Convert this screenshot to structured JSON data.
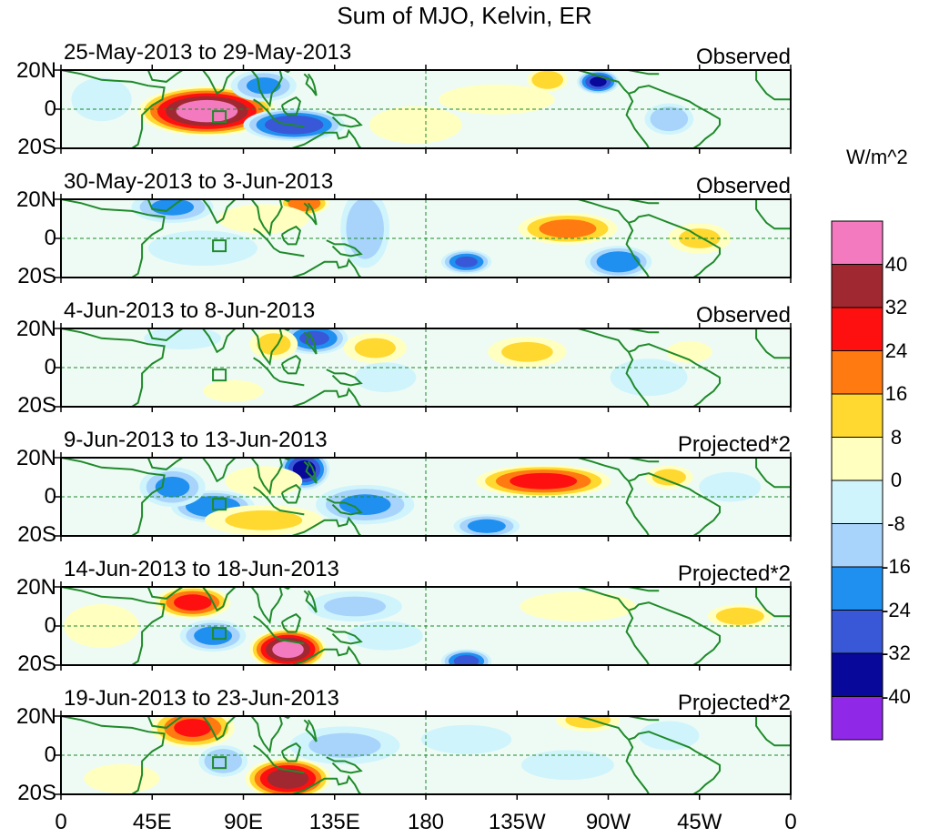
{
  "chart_data": {
    "type": "heatmap",
    "title": "Sum of MJO, Kelvin, ER",
    "colorbar": {
      "unit": "W/m^2",
      "levels": [
        "40",
        "32",
        "24",
        "16",
        "8",
        "0",
        "-8",
        "-16",
        "-24",
        "-32",
        "-40"
      ],
      "colors": [
        "#f47ac0",
        "#a02830",
        "#ff1010",
        "#ff7a10",
        "#ffd830",
        "#ffffc0",
        "#d0f4fc",
        "#a8d4fc",
        "#2090f0",
        "#3858d8",
        "#08089a",
        "#9028e8"
      ]
    },
    "x_axis": {
      "ticks": [
        "0",
        "45E",
        "90E",
        "135E",
        "180",
        "135W",
        "90W",
        "45W",
        "0"
      ],
      "range": [
        0,
        360
      ]
    },
    "y_axis": {
      "ticks": [
        "20N",
        "0",
        "20S"
      ],
      "range": [
        -20,
        20
      ]
    },
    "panels": [
      {
        "date": "25-May-2013 to 29-May-2013",
        "label": "Observed",
        "anomalies": [
          {
            "lon": 72,
            "lat": -1,
            "sx": 16,
            "sy": 6,
            "v": 48
          },
          {
            "lon": 115,
            "lat": -8,
            "sx": 12,
            "sy": 4,
            "v": -34
          },
          {
            "lon": 100,
            "lat": 12,
            "sx": 8,
            "sy": 4,
            "v": -20
          },
          {
            "lon": 175,
            "lat": -8,
            "sx": 12,
            "sy": 5,
            "v": 10
          },
          {
            "lon": 215,
            "lat": 5,
            "sx": 15,
            "sy": 4,
            "v": 10
          },
          {
            "lon": 265,
            "lat": 14,
            "sx": 5,
            "sy": 3,
            "v": -36
          },
          {
            "lon": 240,
            "lat": 15,
            "sx": 5,
            "sy": 3,
            "v": 18
          },
          {
            "lon": 300,
            "lat": -5,
            "sx": 6,
            "sy": 4,
            "v": -18
          },
          {
            "lon": 20,
            "lat": 5,
            "sx": 8,
            "sy": 6,
            "v": -8
          }
        ]
      },
      {
        "date": "30-May-2013 to 3-Jun-2013",
        "label": "Observed",
        "anomalies": [
          {
            "lon": 120,
            "lat": 18,
            "sx": 6,
            "sy": 3,
            "v": 26
          },
          {
            "lon": 55,
            "lat": 16,
            "sx": 10,
            "sy": 4,
            "v": -20
          },
          {
            "lon": 150,
            "lat": 5,
            "sx": 6,
            "sy": 10,
            "v": -18
          },
          {
            "lon": 100,
            "lat": 10,
            "sx": 12,
            "sy": 4,
            "v": 8
          },
          {
            "lon": 250,
            "lat": 5,
            "sx": 12,
            "sy": 4,
            "v": 22
          },
          {
            "lon": 275,
            "lat": -12,
            "sx": 8,
            "sy": 4,
            "v": -26
          },
          {
            "lon": 200,
            "lat": -12,
            "sx": 6,
            "sy": 3,
            "v": -28
          },
          {
            "lon": 315,
            "lat": 0,
            "sx": 8,
            "sy": 4,
            "v": 12
          },
          {
            "lon": 70,
            "lat": -5,
            "sx": 15,
            "sy": 5,
            "v": -6
          }
        ]
      },
      {
        "date": "4-Jun-2013 to 8-Jun-2013",
        "label": "Observed",
        "anomalies": [
          {
            "lon": 125,
            "lat": 15,
            "sx": 8,
            "sy": 4,
            "v": -28
          },
          {
            "lon": 105,
            "lat": 12,
            "sx": 6,
            "sy": 4,
            "v": 14
          },
          {
            "lon": 155,
            "lat": 10,
            "sx": 8,
            "sy": 4,
            "v": 12
          },
          {
            "lon": 230,
            "lat": 8,
            "sx": 10,
            "sy": 4,
            "v": 12
          },
          {
            "lon": 160,
            "lat": -5,
            "sx": 8,
            "sy": 4,
            "v": -10
          },
          {
            "lon": 60,
            "lat": 15,
            "sx": 10,
            "sy": 3,
            "v": -10
          },
          {
            "lon": 85,
            "lat": -12,
            "sx": 8,
            "sy": 3,
            "v": 8
          },
          {
            "lon": 290,
            "lat": -5,
            "sx": 10,
            "sy": 5,
            "v": -10
          },
          {
            "lon": 310,
            "lat": 8,
            "sx": 6,
            "sy": 3,
            "v": 8
          }
        ]
      },
      {
        "date": "9-Jun-2013 to 13-Jun-2013",
        "label": "Projected*2",
        "anomalies": [
          {
            "lon": 120,
            "lat": 14,
            "sx": 6,
            "sy": 5,
            "v": -38
          },
          {
            "lon": 238,
            "lat": 8,
            "sx": 16,
            "sy": 4,
            "v": 30
          },
          {
            "lon": 75,
            "lat": -5,
            "sx": 10,
            "sy": 4,
            "v": -26
          },
          {
            "lon": 55,
            "lat": 5,
            "sx": 8,
            "sy": 5,
            "v": -20
          },
          {
            "lon": 150,
            "lat": -4,
            "sx": 12,
            "sy": 5,
            "v": -20
          },
          {
            "lon": 210,
            "lat": -15,
            "sx": 8,
            "sy": 3,
            "v": -22
          },
          {
            "lon": 100,
            "lat": -12,
            "sx": 15,
            "sy": 4,
            "v": 12
          },
          {
            "lon": 100,
            "lat": 8,
            "sx": 10,
            "sy": 4,
            "v": 10
          },
          {
            "lon": 330,
            "lat": 5,
            "sx": 8,
            "sy": 4,
            "v": -10
          },
          {
            "lon": 300,
            "lat": 10,
            "sx": 6,
            "sy": 3,
            "v": 14
          }
        ]
      },
      {
        "date": "14-Jun-2013 to 18-Jun-2013",
        "label": "Projected*2",
        "anomalies": [
          {
            "lon": 112,
            "lat": -12,
            "sx": 9,
            "sy": 5,
            "v": 46
          },
          {
            "lon": 65,
            "lat": 12,
            "sx": 9,
            "sy": 4,
            "v": 30
          },
          {
            "lon": 75,
            "lat": -5,
            "sx": 8,
            "sy": 4,
            "v": -22
          },
          {
            "lon": 145,
            "lat": 10,
            "sx": 12,
            "sy": 4,
            "v": -12
          },
          {
            "lon": 160,
            "lat": -5,
            "sx": 10,
            "sy": 4,
            "v": -8
          },
          {
            "lon": 200,
            "lat": -18,
            "sx": 6,
            "sy": 3,
            "v": -30
          },
          {
            "lon": 255,
            "lat": 10,
            "sx": 15,
            "sy": 4,
            "v": 10
          },
          {
            "lon": 335,
            "lat": 5,
            "sx": 8,
            "sy": 3,
            "v": 16
          },
          {
            "lon": 20,
            "lat": 0,
            "sx": 10,
            "sy": 6,
            "v": 8
          }
        ]
      },
      {
        "date": "19-Jun-2013 to 23-Jun-2013",
        "label": "Projected*2",
        "anomalies": [
          {
            "lon": 112,
            "lat": -12,
            "sx": 10,
            "sy": 5,
            "v": 40
          },
          {
            "lon": 65,
            "lat": 14,
            "sx": 10,
            "sy": 5,
            "v": 28
          },
          {
            "lon": 80,
            "lat": -3,
            "sx": 6,
            "sy": 4,
            "v": -18
          },
          {
            "lon": 140,
            "lat": 5,
            "sx": 14,
            "sy": 5,
            "v": -12
          },
          {
            "lon": 260,
            "lat": 18,
            "sx": 8,
            "sy": 3,
            "v": 14
          },
          {
            "lon": 250,
            "lat": -5,
            "sx": 12,
            "sy": 4,
            "v": -10
          },
          {
            "lon": 200,
            "lat": 8,
            "sx": 12,
            "sy": 4,
            "v": -8
          },
          {
            "lon": 30,
            "lat": -12,
            "sx": 10,
            "sy": 4,
            "v": 8
          },
          {
            "lon": 300,
            "lat": 10,
            "sx": 8,
            "sy": 4,
            "v": -8
          }
        ]
      }
    ]
  }
}
